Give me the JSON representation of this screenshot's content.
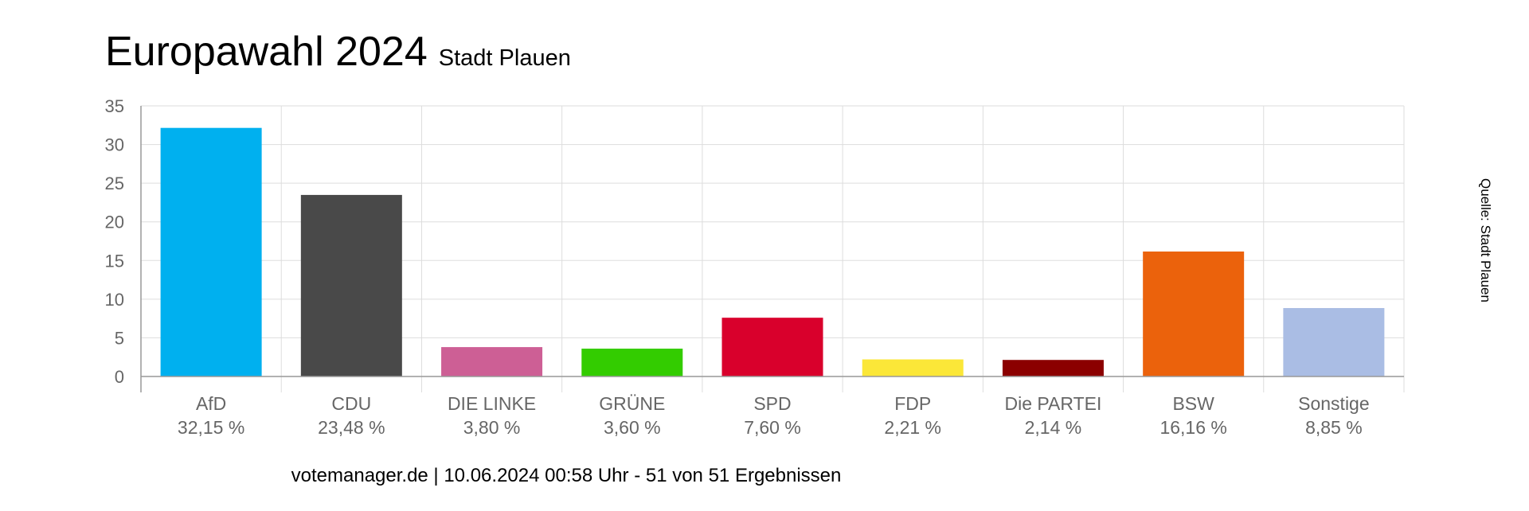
{
  "header": {
    "title": "Europawahl 2024",
    "subtitle": "Stadt Plauen"
  },
  "footer": {
    "text": "votemanager.de | 10.06.2024 00:58 Uhr - 51 von 51 Ergebnissen"
  },
  "source": {
    "text": "Quelle: Stadt Plauen"
  },
  "chart_data": {
    "type": "bar",
    "categories": [
      "AfD",
      "CDU",
      "DIE LINKE",
      "GRÜNE",
      "SPD",
      "FDP",
      "Die PARTEI",
      "BSW",
      "Sonstige"
    ],
    "values": [
      32.15,
      23.48,
      3.8,
      3.6,
      7.6,
      2.21,
      2.14,
      16.16,
      8.85
    ],
    "value_labels": [
      "32,15 %",
      "23,48 %",
      "3,80 %",
      "3,60 %",
      "7,60 %",
      "2,21 %",
      "2,14 %",
      "16,16 %",
      "8,85 %"
    ],
    "colors": [
      "#00b0ef",
      "#494949",
      "#cd5f95",
      "#33cc00",
      "#d9002c",
      "#fbe738",
      "#8b0000",
      "#eb620c",
      "#aabde4"
    ],
    "ylim": [
      0,
      35
    ],
    "yticks": [
      0,
      5,
      10,
      15,
      20,
      25,
      30,
      35
    ],
    "grid": true,
    "legend": "none"
  }
}
